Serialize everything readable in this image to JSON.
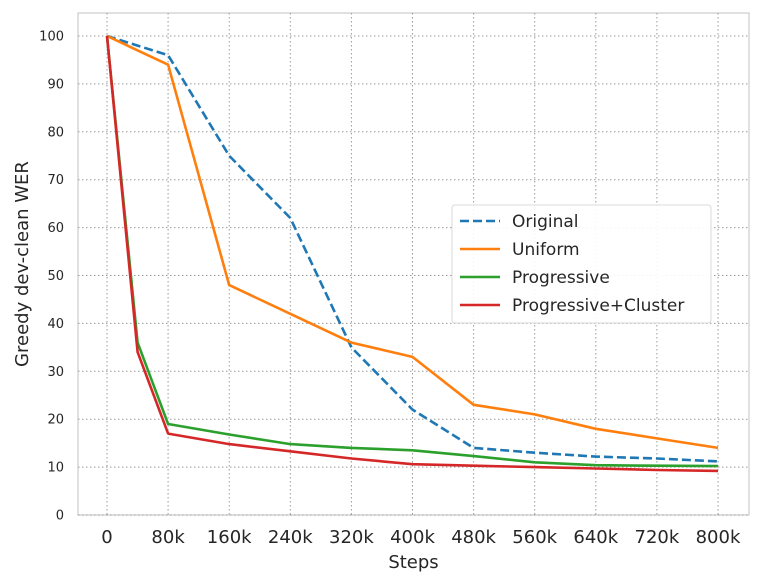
{
  "chart_data": {
    "type": "line",
    "title": "",
    "xlabel": "Steps",
    "ylabel": "Greedy dev-clean WER",
    "xlim": [
      0,
      800000
    ],
    "ylim": [
      0,
      100
    ],
    "x_ticks": [
      0,
      80000,
      160000,
      240000,
      320000,
      400000,
      480000,
      560000,
      640000,
      720000,
      800000
    ],
    "x_tick_labels": [
      "0",
      "80k",
      "160k",
      "240k",
      "320k",
      "400k",
      "480k",
      "560k",
      "640k",
      "720k",
      "800k"
    ],
    "y_ticks": [
      0,
      10,
      20,
      30,
      40,
      50,
      60,
      70,
      80,
      90,
      100
    ],
    "y_tick_labels": [
      "0",
      "10",
      "20",
      "30",
      "40",
      "50",
      "60",
      "70",
      "80",
      "90",
      "100"
    ],
    "grid": true,
    "legend_position": "center-right",
    "series": [
      {
        "name": "Original",
        "color": "#1f77b4",
        "dash": "dashed",
        "x": [
          0,
          80000,
          160000,
          240000,
          320000,
          400000,
          480000,
          560000,
          640000,
          720000,
          800000
        ],
        "y": [
          100,
          96,
          75,
          62,
          35,
          22,
          14,
          13,
          12.2,
          11.8,
          11.2
        ]
      },
      {
        "name": "Uniform",
        "color": "#ff7f0e",
        "dash": "solid",
        "x": [
          0,
          80000,
          160000,
          240000,
          320000,
          400000,
          480000,
          560000,
          640000,
          720000,
          800000
        ],
        "y": [
          100,
          94,
          48,
          42,
          36,
          33,
          23,
          21,
          18,
          16,
          14
        ]
      },
      {
        "name": "Progressive",
        "color": "#2ca02c",
        "dash": "solid",
        "x": [
          0,
          40000,
          80000,
          160000,
          240000,
          320000,
          400000,
          480000,
          560000,
          640000,
          720000,
          800000
        ],
        "y": [
          100,
          36,
          19,
          16.8,
          14.8,
          14,
          13.5,
          12.3,
          11,
          10.4,
          10.3,
          10.2
        ]
      },
      {
        "name": "Progressive+Cluster",
        "color": "#d62728",
        "dash": "solid",
        "x": [
          0,
          40000,
          80000,
          160000,
          240000,
          320000,
          400000,
          480000,
          560000,
          640000,
          720000,
          800000
        ],
        "y": [
          100,
          34,
          17,
          14.8,
          13.3,
          11.8,
          10.6,
          10.3,
          10,
          9.7,
          9.4,
          9.2
        ]
      }
    ]
  }
}
